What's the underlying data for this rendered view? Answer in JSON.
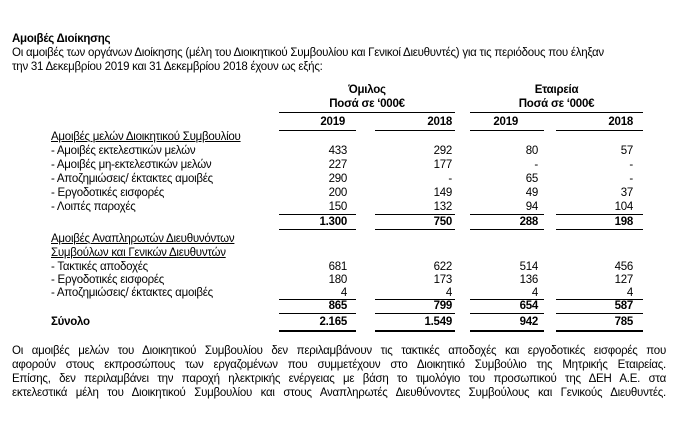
{
  "title": "Αμοιβές Διοίκησης",
  "intro": [
    "Οι αμοιβές των οργάνων Διοίκησης (μέλη του Διοικητικού Συμβουλίου και Γενικοί Διευθυντές) για τις περιόδους που έληξαν",
    "την 31 Δεκεμβρίου 2019 και 31 Δεκεμβρίου 2018 έχουν ως εξής:"
  ],
  "table": {
    "groups": [
      {
        "name": "Όμιλος",
        "unit": "Ποσά σε ‘000€"
      },
      {
        "name": "Εταιρεία",
        "unit": "Ποσά σε ‘000€"
      }
    ],
    "years": [
      "2019",
      "2018",
      "2019",
      "2018"
    ],
    "section1": {
      "label": "Αμοιβές μελών Διοικητικού Συμβουλίου",
      "rows": [
        {
          "label": "- Αμοιβές εκτελεστικών μελών",
          "values": [
            "433",
            "292",
            "80",
            "57"
          ]
        },
        {
          "label": "- Αμοιβές μη-εκτελεστικών μελών",
          "values": [
            "227",
            "177",
            "-",
            "-"
          ]
        },
        {
          "label": "- Αποζημιώσεις/ έκτακτες αμοιβές",
          "values": [
            "290",
            "-",
            "65",
            "-"
          ]
        },
        {
          "label": "- Εργοδοτικές εισφορές",
          "values": [
            "200",
            "149",
            "49",
            "37"
          ]
        },
        {
          "label": "- Λοιπές παροχές",
          "values": [
            "150",
            "132",
            "94",
            "104"
          ]
        }
      ],
      "subtotal": [
        "1.300",
        "750",
        "288",
        "198"
      ]
    },
    "section2": {
      "label_line1": "Αμοιβές Αναπληρωτών Διευθυνόντων",
      "label_line2": "Συμβούλων και Γενικών Διευθυντών",
      "rows": [
        {
          "label": "- Τακτικές αποδοχές",
          "values": [
            "681",
            "622",
            "514",
            "456"
          ]
        },
        {
          "label": "- Εργοδοτικές εισφορές",
          "values": [
            "180",
            "173",
            "136",
            "127"
          ]
        },
        {
          "label": "- Αποζημιώσεις/ έκτακτες αμοιβές",
          "values": [
            "4",
            "4",
            "4",
            "4"
          ]
        }
      ],
      "subtotal": [
        "865",
        "799",
        "654",
        "587"
      ]
    },
    "total": {
      "label": "Σύνολο",
      "values": [
        "2.165",
        "1.549",
        "942",
        "785"
      ]
    }
  },
  "note": [
    "Οι αμοιβές μελών του Διοικητικού Συμβουλίου δεν περιλαμβάνουν τις τακτικές αποδοχές και εργοδοτικές εισφορές που",
    "αφορούν στους εκπροσώπους των εργαζομένων που συμμετέχουν στο Διοικητικό Συμβούλιο της Μητρικής Εταιρείας.",
    "Επίσης, δεν περιλαμβάνει την παροχή ηλεκτρικής ενέργειας με βάση το τιμολόγιο του προσωπικού της ΔΕΗ Α.Ε. στα",
    "εκτελεστικά μέλη του Διοικητικού Συμβουλίου και στους Αναπληρωτές Διευθύνοντες Συμβούλους και Γενικούς Διευθυντές."
  ]
}
